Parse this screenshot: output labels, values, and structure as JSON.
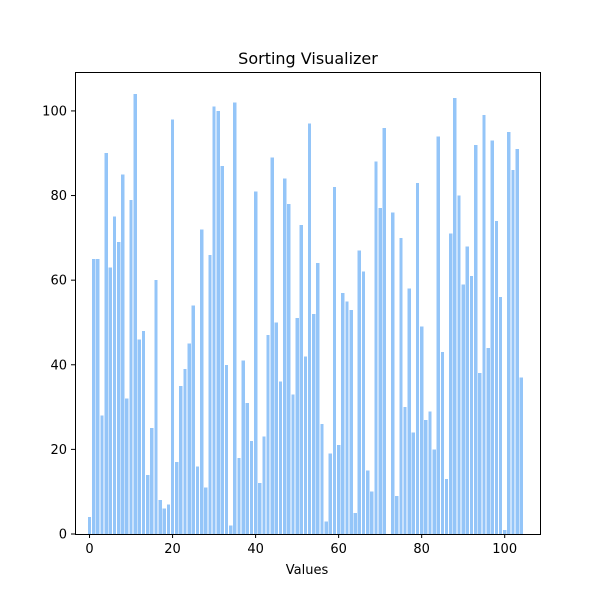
{
  "chart_data": {
    "type": "bar",
    "title": "Sorting Visualizer",
    "xlabel": "Values",
    "ylabel": "",
    "bar_color": "#94c5f8",
    "xlim": [
      -3.5,
      108.5
    ],
    "ylim": [
      0,
      109.2
    ],
    "xticks": [
      0,
      20,
      40,
      60,
      80,
      100
    ],
    "yticks": [
      0,
      20,
      40,
      60,
      80,
      100
    ],
    "grid": false,
    "x": [
      0,
      1,
      2,
      3,
      4,
      5,
      6,
      7,
      8,
      9,
      10,
      11,
      12,
      13,
      14,
      15,
      16,
      17,
      18,
      19,
      20,
      21,
      22,
      23,
      24,
      25,
      26,
      27,
      28,
      29,
      30,
      31,
      32,
      33,
      34,
      35,
      36,
      37,
      38,
      39,
      40,
      41,
      42,
      43,
      44,
      45,
      46,
      47,
      48,
      49,
      50,
      51,
      52,
      53,
      54,
      55,
      56,
      57,
      58,
      59,
      60,
      61,
      62,
      63,
      64,
      65,
      66,
      67,
      68,
      69,
      70,
      71,
      72,
      73,
      74,
      75,
      76,
      77,
      78,
      79,
      80,
      81,
      82,
      83,
      84,
      85,
      86,
      87,
      88,
      89,
      90,
      91,
      92,
      93,
      94,
      95,
      96,
      97,
      98,
      99,
      100,
      101,
      102,
      103,
      104
    ],
    "values": [
      4,
      65,
      65,
      28,
      90,
      63,
      75,
      69,
      85,
      32,
      79,
      104,
      46,
      48,
      14,
      25,
      60,
      8,
      6,
      7,
      98,
      17,
      35,
      39,
      45,
      54,
      16,
      72,
      11,
      66,
      101,
      100,
      87,
      40,
      2,
      102,
      18,
      41,
      31,
      22,
      81,
      12,
      23,
      47,
      89,
      50,
      36,
      84,
      78,
      33,
      51,
      73,
      42,
      97,
      52,
      64,
      26,
      3,
      19,
      82,
      21,
      57,
      55,
      53,
      5,
      67,
      62,
      15,
      10,
      88,
      77,
      96,
      0,
      76,
      9,
      70,
      30,
      58,
      24,
      83,
      49,
      27,
      29,
      20,
      94,
      43,
      13,
      71,
      103,
      80,
      59,
      68,
      61,
      92,
      38,
      99,
      44,
      93,
      74,
      56,
      1,
      95,
      86,
      91,
      37
    ]
  }
}
